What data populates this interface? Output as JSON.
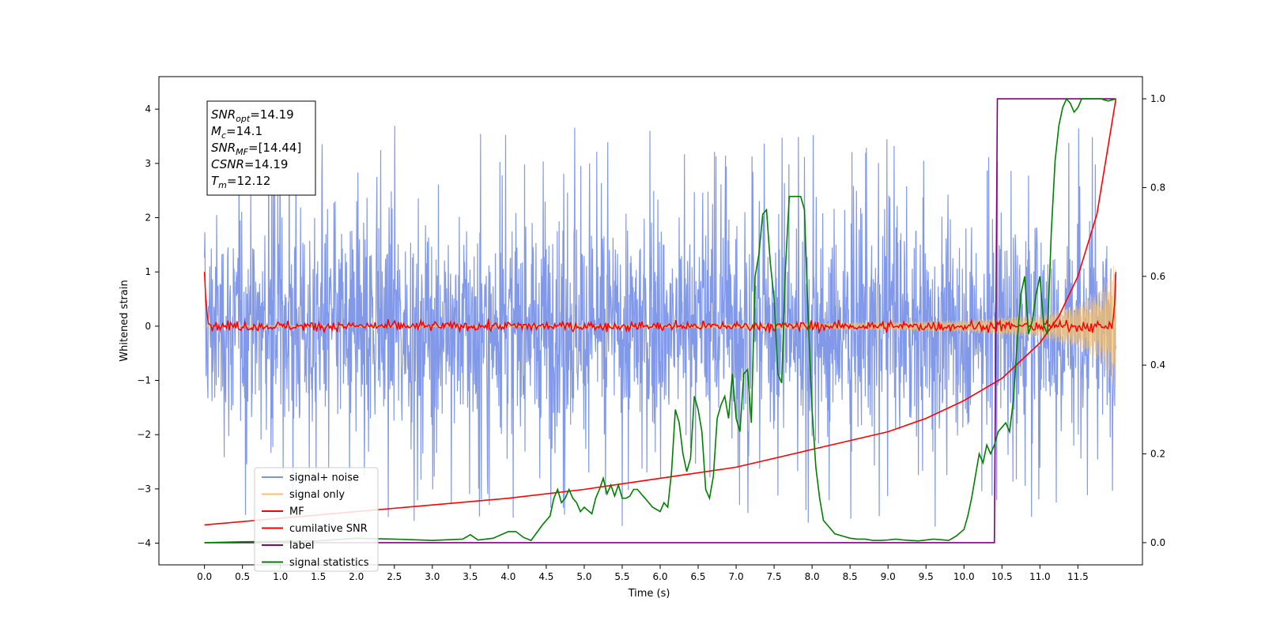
{
  "chart_data": {
    "type": "line",
    "xlabel": "Time (s)",
    "ylabel": "Whitened strain",
    "xlim": [
      -0.6,
      12.35
    ],
    "ylim_left": [
      -4.4,
      4.6
    ],
    "ylim_right": [
      -0.05,
      1.05
    ],
    "x_ticks": [
      "0.0",
      "0.5",
      "1.0",
      "1.5",
      "2.0",
      "2.5",
      "3.0",
      "3.5",
      "4.0",
      "4.5",
      "5.0",
      "5.5",
      "6.0",
      "6.5",
      "7.0",
      "7.5",
      "8.0",
      "8.5",
      "9.0",
      "9.5",
      "10.0",
      "10.5",
      "11.0",
      "11.5"
    ],
    "y_ticks_left": [
      "4",
      "3",
      "2",
      "1",
      "0",
      "−1",
      "−2",
      "−3",
      "−4"
    ],
    "y_ticks_right": [
      "1.0",
      "0.8",
      "0.6",
      "0.4",
      "0.2",
      "0.0"
    ],
    "colors": {
      "signal_noise": "#7b93e8",
      "signal_only": "#f5c06a",
      "mf": "#ff0000",
      "cumulative_snr": "#ff0000",
      "label": "#800080",
      "signal_statistics": "#008000"
    },
    "legend": {
      "placement": "lower-left",
      "entries": [
        "signal+ noise",
        "signal only",
        "MF",
        "cumilative SNR",
        "label",
        "signal statistics"
      ]
    },
    "annotation": {
      "lines": [
        {
          "base": "SNR",
          "sub": "opt",
          "value": "=14.19"
        },
        {
          "base": "M",
          "sub": "c",
          "value": "=14.1"
        },
        {
          "base": "SNR",
          "sub": "MF",
          "value": "=[14.44]"
        },
        {
          "base": "CSNR",
          "sub": "",
          "value": "=14.19"
        },
        {
          "base": "T",
          "sub": "m",
          "value": "=12.12"
        }
      ]
    },
    "series": [
      {
        "name": "signal+ noise",
        "axis": "left",
        "description_of_values": "noisy whitened strain spanning roughly -3.9 to 3.8 over t=0..12",
        "envelope": {
          "x": [
            0,
            12
          ],
          "y_min": -3.9,
          "y_max": 3.8
        }
      },
      {
        "name": "signal only",
        "axis": "left",
        "chirp_envelope": {
          "x": [
            0,
            6,
            8,
            9,
            10,
            10.5,
            11,
            11.5,
            11.8,
            12
          ],
          "amp": [
            0.01,
            0.03,
            0.06,
            0.08,
            0.11,
            0.16,
            0.22,
            0.4,
            0.65,
            1.2
          ]
        }
      },
      {
        "name": "MF",
        "axis": "left",
        "x": [
          0,
          0.02,
          0.05,
          0.1,
          6,
          11.95,
          11.98,
          12
        ],
        "y": [
          1.0,
          0.4,
          0.05,
          0.0,
          0.0,
          0.0,
          0.3,
          1.0
        ]
      },
      {
        "name": "cumilative SNR",
        "axis": "right",
        "x": [
          0,
          1,
          2,
          3,
          4,
          5,
          6,
          7,
          8,
          9,
          9.5,
          10,
          10.5,
          11,
          11.25,
          11.5,
          11.75,
          12
        ],
        "y": [
          0.04,
          0.055,
          0.07,
          0.085,
          0.1,
          0.12,
          0.145,
          0.17,
          0.21,
          0.25,
          0.28,
          0.32,
          0.37,
          0.45,
          0.51,
          0.6,
          0.74,
          1.0
        ]
      },
      {
        "name": "label",
        "axis": "right",
        "x": [
          0,
          10.4,
          10.44,
          12
        ],
        "y": [
          0,
          0,
          1,
          1
        ]
      },
      {
        "name": "signal statistics",
        "axis": "right",
        "x": [
          0,
          0.5,
          1,
          1.5,
          2,
          2.5,
          3,
          3.4,
          3.5,
          3.6,
          3.8,
          4,
          4.1,
          4.2,
          4.3,
          4.45,
          4.55,
          4.6,
          4.65,
          4.7,
          4.75,
          4.8,
          4.85,
          4.9,
          4.95,
          5,
          5.1,
          5.15,
          5.2,
          5.25,
          5.3,
          5.35,
          5.4,
          5.45,
          5.5,
          5.55,
          5.6,
          5.65,
          5.7,
          5.8,
          5.9,
          6,
          6.05,
          6.1,
          6.15,
          6.2,
          6.25,
          6.3,
          6.35,
          6.4,
          6.45,
          6.5,
          6.55,
          6.6,
          6.65,
          6.7,
          6.75,
          6.8,
          6.85,
          6.9,
          6.95,
          7.0,
          7.05,
          7.1,
          7.15,
          7.2,
          7.25,
          7.3,
          7.35,
          7.4,
          7.45,
          7.5,
          7.55,
          7.6,
          7.65,
          7.7,
          7.75,
          7.8,
          7.85,
          7.9,
          7.95,
          8.0,
          8.05,
          8.1,
          8.15,
          8.2,
          8.3,
          8.4,
          8.5,
          8.6,
          8.7,
          8.8,
          8.9,
          9,
          9.1,
          9.2,
          9.4,
          9.6,
          9.8,
          9.9,
          10,
          10.05,
          10.1,
          10.15,
          10.2,
          10.25,
          10.3,
          10.35,
          10.4,
          10.45,
          10.5,
          10.55,
          10.6,
          10.65,
          10.7,
          10.75,
          10.8,
          10.85,
          10.9,
          10.95,
          11,
          11.05,
          11.1,
          11.15,
          11.2,
          11.25,
          11.3,
          11.35,
          11.4,
          11.45,
          11.5,
          11.55,
          11.6,
          11.65,
          11.7,
          11.8,
          11.9,
          12
        ],
        "y": [
          0,
          0.002,
          0.003,
          0.004,
          0.01,
          0.008,
          0.005,
          0.008,
          0.018,
          0.006,
          0.01,
          0.025,
          0.025,
          0.012,
          0.005,
          0.04,
          0.06,
          0.1,
          0.12,
          0.09,
          0.1,
          0.12,
          0.1,
          0.09,
          0.07,
          0.08,
          0.065,
          0.1,
          0.12,
          0.145,
          0.11,
          0.13,
          0.105,
          0.13,
          0.1,
          0.1,
          0.105,
          0.12,
          0.12,
          0.1,
          0.08,
          0.07,
          0.09,
          0.08,
          0.16,
          0.3,
          0.27,
          0.2,
          0.16,
          0.19,
          0.33,
          0.3,
          0.25,
          0.12,
          0.1,
          0.15,
          0.28,
          0.31,
          0.33,
          0.28,
          0.38,
          0.28,
          0.25,
          0.38,
          0.39,
          0.27,
          0.6,
          0.65,
          0.74,
          0.75,
          0.63,
          0.55,
          0.38,
          0.36,
          0.62,
          0.78,
          0.78,
          0.78,
          0.78,
          0.75,
          0.5,
          0.3,
          0.17,
          0.1,
          0.05,
          0.04,
          0.02,
          0.015,
          0.01,
          0.008,
          0.008,
          0.005,
          0.005,
          0.006,
          0.008,
          0.006,
          0.004,
          0.008,
          0.005,
          0.015,
          0.03,
          0.06,
          0.1,
          0.15,
          0.2,
          0.18,
          0.22,
          0.2,
          0.22,
          0.25,
          0.26,
          0.27,
          0.25,
          0.32,
          0.45,
          0.56,
          0.6,
          0.47,
          0.5,
          0.56,
          0.6,
          0.49,
          0.47,
          0.7,
          0.86,
          0.94,
          0.98,
          1.0,
          0.99,
          0.97,
          0.98,
          1.0,
          1.0,
          1.0,
          1.0,
          1.0,
          0.995,
          1.0
        ]
      }
    ]
  }
}
